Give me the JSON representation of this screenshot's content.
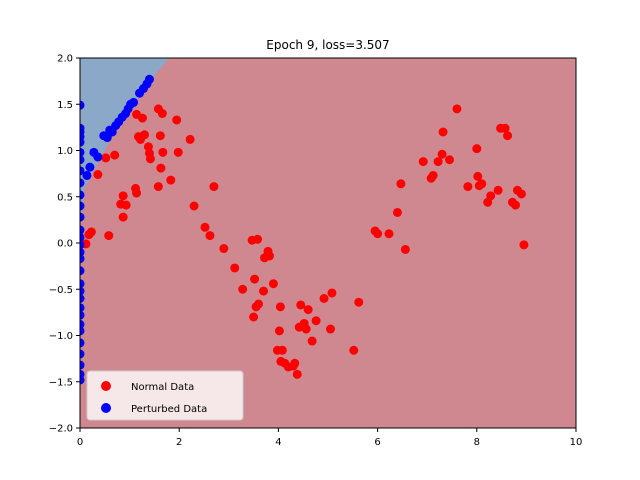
{
  "chart_data": {
    "type": "scatter",
    "title": "Epoch 9, loss=3.507",
    "xlabel": "",
    "ylabel": "",
    "xlim": [
      0,
      10
    ],
    "ylim": [
      -2,
      2
    ],
    "x_ticks": [
      0,
      2,
      4,
      6,
      8,
      10
    ],
    "y_ticks": [
      -2.0,
      -1.5,
      -1.0,
      -0.5,
      0.0,
      0.5,
      1.0,
      1.5,
      2.0
    ],
    "x_tick_labels": [
      "0",
      "2",
      "4",
      "6",
      "8",
      "10"
    ],
    "y_tick_labels": [
      "−2.0",
      "−1.5",
      "−1.0",
      "−0.5",
      "0.0",
      "0.5",
      "1.0",
      "1.5",
      "2.0"
    ],
    "grid": false,
    "legend_position": "lower-left",
    "colors": {
      "normal": "#ff0000",
      "perturbed": "#0000ff",
      "region_normal": "#d08890",
      "region_perturbed": "#8ca8c8"
    },
    "decision_region": {
      "class": "Perturbed Data",
      "boundary": [
        [
          0.0,
          0.2
        ],
        [
          0.1,
          0.6
        ],
        [
          0.3,
          0.8
        ],
        [
          0.6,
          1.1
        ],
        [
          1.0,
          1.4
        ],
        [
          1.4,
          1.75
        ],
        [
          1.8,
          2.0
        ]
      ]
    },
    "series": [
      {
        "name": "Normal Data",
        "color": "#ff0000",
        "points": [
          [
            0.12,
            -0.01
          ],
          [
            0.18,
            0.09
          ],
          [
            0.23,
            0.12
          ],
          [
            0.36,
            0.74
          ],
          [
            0.52,
            0.92
          ],
          [
            0.58,
            0.08
          ],
          [
            0.7,
            0.95
          ],
          [
            0.82,
            0.42
          ],
          [
            0.87,
            0.51
          ],
          [
            0.87,
            0.28
          ],
          [
            0.93,
            0.41
          ],
          [
            1.12,
            0.59
          ],
          [
            1.14,
            0.54
          ],
          [
            1.14,
            1.39
          ],
          [
            1.18,
            1.15
          ],
          [
            1.22,
            1.12
          ],
          [
            1.26,
            1.35
          ],
          [
            1.3,
            1.17
          ],
          [
            1.38,
            1.04
          ],
          [
            1.4,
            0.97
          ],
          [
            1.42,
            0.91
          ],
          [
            1.58,
            1.45
          ],
          [
            1.58,
            0.61
          ],
          [
            1.62,
            1.16
          ],
          [
            1.63,
            0.81
          ],
          [
            1.66,
            1.4
          ],
          [
            1.67,
            0.98
          ],
          [
            1.83,
            0.68
          ],
          [
            1.95,
            1.33
          ],
          [
            1.98,
            0.98
          ],
          [
            2.22,
            1.12
          ],
          [
            2.3,
            0.4
          ],
          [
            2.52,
            0.17
          ],
          [
            2.62,
            0.08
          ],
          [
            2.7,
            0.61
          ],
          [
            2.9,
            -0.06
          ],
          [
            3.12,
            -0.27
          ],
          [
            3.28,
            -0.5
          ],
          [
            3.47,
            0.03
          ],
          [
            3.5,
            -0.8
          ],
          [
            3.52,
            -0.39
          ],
          [
            3.55,
            -0.69
          ],
          [
            3.58,
            0.04
          ],
          [
            3.6,
            -0.66
          ],
          [
            3.7,
            -0.52
          ],
          [
            3.72,
            -0.16
          ],
          [
            3.79,
            -0.09
          ],
          [
            3.82,
            -0.14
          ],
          [
            3.9,
            -0.44
          ],
          [
            3.98,
            -1.16
          ],
          [
            4.02,
            -0.95
          ],
          [
            4.04,
            -0.69
          ],
          [
            4.05,
            -1.28
          ],
          [
            4.08,
            -1.16
          ],
          [
            4.13,
            -1.3
          ],
          [
            4.2,
            -1.34
          ],
          [
            4.3,
            -1.33
          ],
          [
            4.33,
            -1.3
          ],
          [
            4.38,
            -1.42
          ],
          [
            4.42,
            -0.91
          ],
          [
            4.45,
            -0.67
          ],
          [
            4.52,
            -0.87
          ],
          [
            4.56,
            -0.93
          ],
          [
            4.6,
            -0.72
          ],
          [
            4.68,
            -1.06
          ],
          [
            4.76,
            -0.84
          ],
          [
            4.92,
            -0.6
          ],
          [
            5.05,
            -0.93
          ],
          [
            5.08,
            -0.54
          ],
          [
            5.52,
            -1.16
          ],
          [
            5.62,
            -0.64
          ],
          [
            5.95,
            0.13
          ],
          [
            6.0,
            0.1
          ],
          [
            6.23,
            0.1
          ],
          [
            6.4,
            0.33
          ],
          [
            6.47,
            0.64
          ],
          [
            6.56,
            -0.07
          ],
          [
            6.92,
            0.88
          ],
          [
            7.08,
            0.7
          ],
          [
            7.12,
            0.73
          ],
          [
            7.22,
            0.88
          ],
          [
            7.3,
            0.96
          ],
          [
            7.32,
            1.2
          ],
          [
            7.45,
            0.9
          ],
          [
            7.6,
            1.45
          ],
          [
            7.82,
            0.61
          ],
          [
            8.0,
            1.02
          ],
          [
            8.02,
            0.72
          ],
          [
            8.05,
            0.62
          ],
          [
            8.1,
            0.64
          ],
          [
            8.22,
            0.44
          ],
          [
            8.28,
            0.51
          ],
          [
            8.43,
            0.57
          ],
          [
            8.48,
            1.24
          ],
          [
            8.57,
            1.24
          ],
          [
            8.62,
            1.16
          ],
          [
            8.72,
            0.44
          ],
          [
            8.78,
            0.41
          ],
          [
            8.82,
            0.57
          ],
          [
            8.9,
            0.53
          ],
          [
            8.95,
            -0.02
          ]
        ]
      },
      {
        "name": "Perturbed Data",
        "color": "#0000ff",
        "points": [
          [
            0.0,
            1.49
          ],
          [
            0.0,
            1.24
          ],
          [
            0.0,
            1.2
          ],
          [
            0.0,
            1.15
          ],
          [
            0.0,
            1.09
          ],
          [
            0.0,
            0.98
          ],
          [
            0.0,
            0.9
          ],
          [
            0.0,
            0.78
          ],
          [
            0.0,
            0.65
          ],
          [
            0.0,
            0.52
          ],
          [
            0.0,
            0.4
          ],
          [
            0.0,
            0.28
          ],
          [
            0.0,
            0.14
          ],
          [
            0.0,
            0.06
          ],
          [
            0.0,
            -0.02
          ],
          [
            0.0,
            -0.1
          ],
          [
            0.0,
            -0.17
          ],
          [
            0.0,
            -0.3
          ],
          [
            0.0,
            -0.44
          ],
          [
            0.0,
            -0.52
          ],
          [
            0.0,
            -0.6
          ],
          [
            0.0,
            -0.7
          ],
          [
            0.0,
            -0.78
          ],
          [
            0.0,
            -0.88
          ],
          [
            0.0,
            -0.95
          ],
          [
            0.0,
            -1.08
          ],
          [
            0.0,
            -1.2
          ],
          [
            0.0,
            -1.32
          ],
          [
            0.0,
            -1.42
          ],
          [
            0.0,
            -1.48
          ],
          [
            0.14,
            0.73
          ],
          [
            0.2,
            0.82
          ],
          [
            0.28,
            0.98
          ],
          [
            0.36,
            0.93
          ],
          [
            0.48,
            1.16
          ],
          [
            0.55,
            1.14
          ],
          [
            0.6,
            1.22
          ],
          [
            0.65,
            1.2
          ],
          [
            0.72,
            1.27
          ],
          [
            0.78,
            1.31
          ],
          [
            0.85,
            1.36
          ],
          [
            0.92,
            1.4
          ],
          [
            0.97,
            1.45
          ],
          [
            1.02,
            1.5
          ],
          [
            1.08,
            1.52
          ],
          [
            1.2,
            1.62
          ],
          [
            1.28,
            1.67
          ],
          [
            1.35,
            1.72
          ],
          [
            1.4,
            1.77
          ]
        ]
      }
    ]
  }
}
